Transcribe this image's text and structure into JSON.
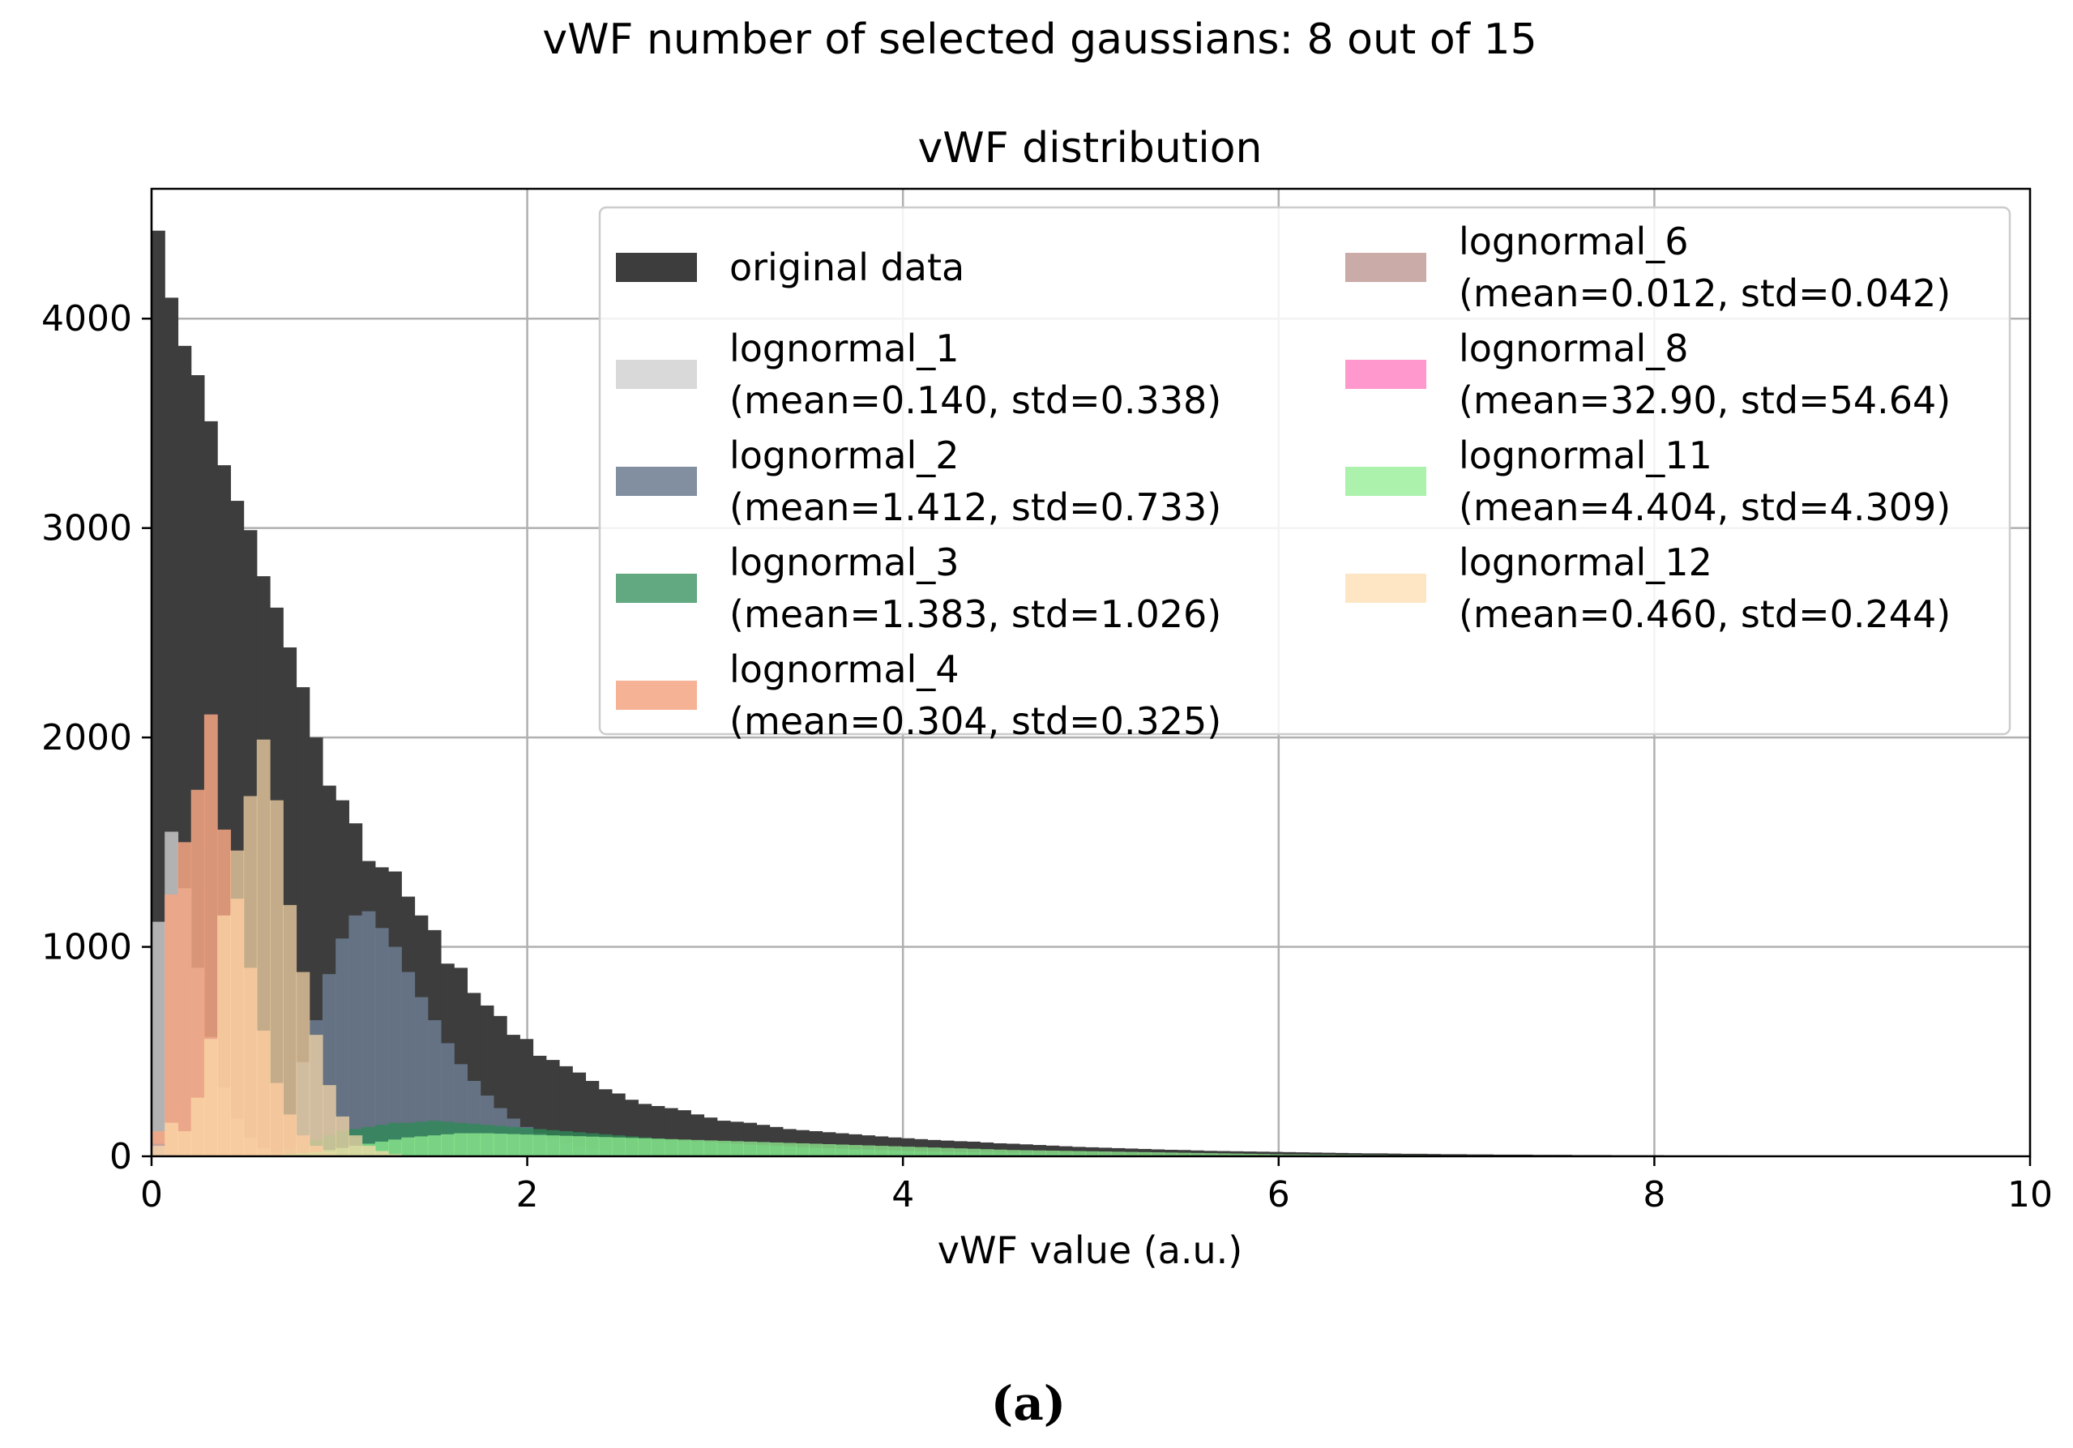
{
  "suptitle": "vWF number of selected gaussians: 8 out of 15",
  "caption": "(a)",
  "chart_data": {
    "type": "bar",
    "subtype": "overlaid-histogram",
    "title": "vWF distribution",
    "xlabel": "vWF value (a.u.)",
    "ylabel": "",
    "xlim": [
      0,
      10
    ],
    "ylim": [
      0,
      4620
    ],
    "grid": true,
    "legend_position": "top-right",
    "legend_columns": 2,
    "xticks": [
      0,
      2,
      4,
      6,
      8,
      10
    ],
    "yticks": [
      1000,
      2000,
      3000,
      4000
    ],
    "bin_width": 0.07,
    "series": [
      {
        "name": "original data",
        "label": "original data",
        "color": "#3d3d3d",
        "opacity": 1,
        "start": 0,
        "values": [
          4420,
          4100,
          3870,
          3730,
          3510,
          3300,
          3130,
          2990,
          2770,
          2620,
          2430,
          2240,
          2000,
          1770,
          1700,
          1590,
          1410,
          1380,
          1360,
          1240,
          1150,
          1080,
          920,
          900,
          780,
          720,
          670,
          580,
          560,
          480,
          460,
          430,
          400,
          360,
          320,
          300,
          270,
          250,
          240,
          230,
          220,
          200,
          185,
          170,
          165,
          160,
          150,
          140,
          130,
          125,
          120,
          115,
          110,
          105,
          100,
          95,
          90,
          86,
          82,
          78,
          75,
          72,
          70,
          66,
          62,
          60,
          57,
          54,
          51,
          48,
          45,
          43,
          41,
          39,
          37,
          35,
          33,
          31,
          30,
          28,
          26,
          25,
          24,
          23,
          22,
          21,
          20,
          19,
          18,
          17,
          16,
          15,
          14,
          14,
          13,
          12,
          12,
          11,
          10,
          10,
          9,
          9,
          8,
          8,
          8,
          7,
          7,
          7,
          6,
          6,
          6,
          5,
          5,
          5,
          5,
          4,
          4,
          4,
          4,
          4,
          3,
          3,
          3,
          3,
          3,
          3,
          3,
          2,
          2,
          2,
          2,
          2,
          2,
          2,
          2,
          2,
          2,
          2,
          2,
          2,
          2,
          2,
          2
        ]
      },
      {
        "name": "lognormal_1",
        "label": "lognormal_1",
        "stats": "(mean=0.140, std=0.338)",
        "color": "#cfcfcf",
        "opacity": 0.8,
        "start": 0,
        "values": [
          1120,
          1550,
          1280,
          900,
          570,
          330,
          180,
          90,
          40,
          15,
          5
        ]
      },
      {
        "name": "lognormal_2",
        "label": "lognormal_2",
        "stats": "(mean=1.412, std=0.733)",
        "color": "#6b7b8f",
        "opacity": 0.85,
        "start": 0.77,
        "values": [
          450,
          650,
          870,
          1040,
          1150,
          1170,
          1090,
          1000,
          880,
          760,
          650,
          540,
          440,
          360,
          290,
          230,
          180,
          140,
          110,
          80,
          60,
          45,
          35,
          25,
          18,
          12,
          8,
          5
        ]
      },
      {
        "name": "lognormal_3",
        "label": "lognormal_3",
        "stats": "(mean=1.383, std=1.026)",
        "color": "#2e8b57",
        "opacity": 0.75,
        "start": 0.63,
        "values": [
          20,
          40,
          60,
          80,
          100,
          120,
          130,
          140,
          150,
          160,
          160,
          165,
          170,
          165,
          160,
          155,
          150,
          145,
          140,
          135,
          130,
          125,
          120,
          115,
          110,
          105,
          100,
          95,
          90,
          85,
          80,
          76,
          72,
          68,
          64,
          60,
          56,
          53,
          50,
          47,
          44,
          41,
          38,
          36,
          34,
          32,
          30,
          28,
          26,
          24,
          22,
          21,
          20,
          19,
          18,
          17,
          16,
          15,
          14,
          13,
          12,
          11,
          10,
          9,
          8,
          8,
          7,
          6,
          6,
          5
        ]
      },
      {
        "name": "lognormal_4",
        "label": "lognormal_4",
        "stats": "(mean=0.304, std=0.325)",
        "color": "#f4a582",
        "opacity": 0.85,
        "start": 0,
        "values": [
          120,
          1250,
          1500,
          1750,
          2110,
          1560,
          1230,
          900,
          600,
          350,
          200,
          100,
          50,
          20,
          5
        ]
      },
      {
        "name": "lognormal_6",
        "label": "lognormal_6",
        "stats": "(mean=0.012, std=0.042)",
        "color": "#c4a29e",
        "opacity": 0.9,
        "start": 0,
        "values": [
          60,
          10
        ]
      },
      {
        "name": "lognormal_8",
        "label": "lognormal_8",
        "stats": "(mean=32.90, std=54.64)",
        "color": "#ff7fc0",
        "opacity": 0.8,
        "start": 6.0,
        "values": [
          4,
          4,
          4,
          4,
          4,
          4,
          4,
          4,
          4,
          4,
          4,
          4,
          4,
          4,
          4,
          4,
          4,
          4,
          4,
          4,
          4,
          4,
          4,
          4,
          4,
          4,
          4,
          4,
          4,
          4,
          4,
          4,
          4,
          4,
          4,
          4,
          4,
          4,
          4,
          4,
          4,
          4,
          4,
          4,
          4,
          4,
          4,
          4,
          4,
          4,
          4,
          4,
          4,
          4,
          4,
          4,
          4
        ]
      },
      {
        "name": "lognormal_11",
        "label": "lognormal_11",
        "stats": "(mean=4.404, std=4.309)",
        "color": "#90ee90",
        "opacity": 0.75,
        "start": 0.7,
        "values": [
          10,
          15,
          20,
          30,
          40,
          50,
          60,
          70,
          80,
          90,
          95,
          100,
          105,
          110,
          110,
          110,
          108,
          106,
          104,
          102,
          100,
          98,
          96,
          94,
          92,
          90,
          88,
          86,
          84,
          82,
          80,
          78,
          76,
          74,
          72,
          70,
          68,
          66,
          64,
          62,
          60,
          58,
          56,
          54,
          52,
          50,
          48,
          46,
          44,
          42,
          40,
          38,
          36,
          34,
          32,
          30,
          29,
          28,
          27,
          26,
          25,
          24,
          23,
          22,
          21,
          20,
          19,
          18,
          17,
          16,
          15,
          14,
          13,
          12,
          11,
          10,
          9,
          9,
          8,
          8,
          7,
          7,
          6,
          6,
          5,
          5,
          5,
          4,
          4,
          4,
          4,
          3,
          3,
          3,
          3,
          3,
          2,
          2,
          2,
          2,
          2,
          2,
          2,
          2,
          2,
          2,
          2,
          2,
          2,
          2,
          2,
          2,
          2,
          2,
          2,
          2,
          2,
          2,
          2,
          2,
          2,
          2,
          2,
          2,
          2,
          2,
          2,
          2,
          2,
          2,
          2,
          2
        ]
      },
      {
        "name": "lognormal_12",
        "label": "lognormal_12",
        "stats": "(mean=0.460, std=0.244)",
        "color": "#fddcab",
        "opacity": 0.7,
        "start": 0,
        "values": [
          50,
          160,
          120,
          280,
          560,
          1150,
          1460,
          1720,
          1990,
          1700,
          1200,
          880,
          580,
          340,
          190,
          100,
          50,
          25,
          10
        ]
      }
    ]
  }
}
